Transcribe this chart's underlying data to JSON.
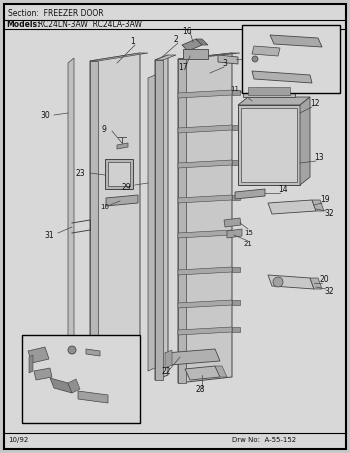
{
  "section_label": "Section:  FREEZER DOOR",
  "models_label": "Models:  RC24LN-3AW  RC24LA-3AW",
  "footer_left": "10/92",
  "footer_right": "Drw No:  A-55-152",
  "bg_color": "#e8e8e8",
  "inner_bg": "#d4d4d4",
  "border_color": "#000000",
  "lc": "#444444",
  "tc": "#111111",
  "fig_width": 3.5,
  "fig_height": 4.53,
  "dpi": 100
}
